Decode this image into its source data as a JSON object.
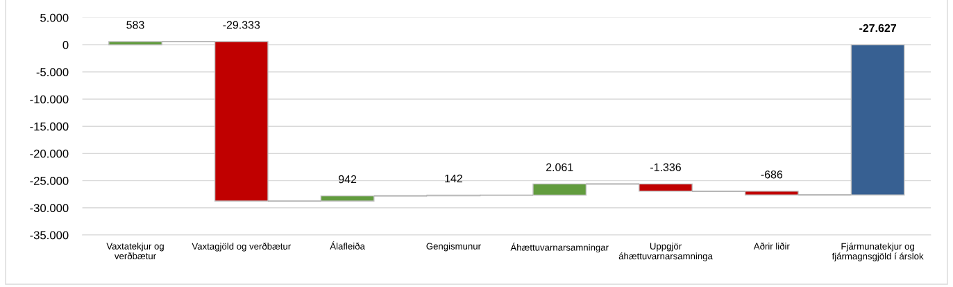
{
  "chart_data": {
    "type": "bar",
    "categories": [
      "Vaxtatekjur og\nverðbætur",
      "Vaxtagjöld og verðbætur",
      "Álafleiða",
      "Gengismunur",
      "Áhættuvarnarsamningar",
      "Uppgjör\náhættuvarnarsamninga",
      "Aðrir liðir",
      "Fjármunatekjur og\nfjármagnsgjöld í árslok"
    ],
    "values": [
      583,
      -29333,
      942,
      142,
      2061,
      -1336,
      -686,
      -27627
    ],
    "base": [
      0,
      583,
      -28750,
      -27808,
      -27666,
      -25605,
      -26941,
      0
    ],
    "colors": [
      "#629c3e",
      "#c00000",
      "#629c3e",
      "#629c3e",
      "#629c3e",
      "#c00000",
      "#c00000",
      "#376092"
    ],
    "value_labels": [
      "583",
      "-29.333",
      "942",
      "142",
      "2.061",
      "-1.336",
      "-686",
      "-27.627"
    ],
    "ylim": [
      -35000,
      5000
    ],
    "yticks": [
      {
        "value": -35000,
        "label": "-35.000"
      },
      {
        "value": -30000,
        "label": "-30.000"
      },
      {
        "value": -25000,
        "label": "-25.000"
      },
      {
        "value": -20000,
        "label": "-20.000"
      },
      {
        "value": -15000,
        "label": "-15.000"
      },
      {
        "value": -10000,
        "label": "-10.000"
      },
      {
        "value": -5000,
        "label": "-5.000"
      },
      0,
      {
        "value": 5000,
        "label": "5.000"
      }
    ],
    "grid": "y",
    "legend": false
  }
}
